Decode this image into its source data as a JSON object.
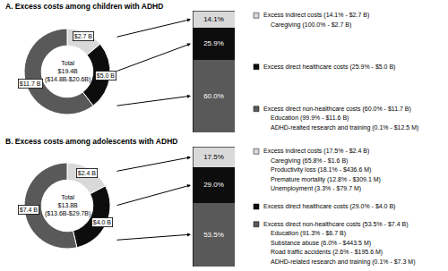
{
  "chart_data": [
    {
      "type": "pie",
      "title": "A. Excess costs among children with ADHD",
      "values": [
        2.7,
        5.0,
        11.7
      ],
      "value_labels": [
        "$2.7 B",
        "$5.0 B",
        "$11.7 B"
      ],
      "colors": [
        "#d9d9d9",
        "#0d0d0d",
        "#595959"
      ],
      "data_labels": true,
      "annotations": [
        "Total",
        "$19.4B",
        "($14.8B-$20.6B)"
      ]
    },
    {
      "type": "bar",
      "stacked": true,
      "tick_labels": false,
      "data_labels": true,
      "ylim": [
        0,
        100
      ],
      "series": [
        {
          "name": "Excess indirect costs (14.1% - $2.7 B)",
          "color": "#d9d9d9",
          "values": [
            14.1
          ],
          "value_labels": [
            "14.1%"
          ],
          "items": [
            "Caregiving (100.0% - $2.7 B)"
          ]
        },
        {
          "name": "Excess direct healthcare costs (25.9% - $5.0 B)",
          "color": "#0d0d0d",
          "values": [
            25.9
          ],
          "value_labels": [
            "25.9%"
          ],
          "items": []
        },
        {
          "name": "Excess direct non-healthcare costs (60.0% - $11.7 B)",
          "color": "#595959",
          "values": [
            60.0
          ],
          "value_labels": [
            "60.0%"
          ],
          "items": [
            "Education (99.9% - $11.6 B)",
            "ADHD-realted research and training (0.1% - $12.5 M)"
          ]
        }
      ]
    },
    {
      "type": "pie",
      "title": "B. Excess costs among adolescents with ADHD",
      "values": [
        2.4,
        4.0,
        7.4
      ],
      "value_labels": [
        "$2.4 B",
        "$4.0 B",
        "$7.4 B"
      ],
      "colors": [
        "#d9d9d9",
        "#0d0d0d",
        "#595959"
      ],
      "data_labels": true,
      "annotations": [
        "Total",
        "$13.8B",
        "($13.6B-$29.7B)"
      ]
    },
    {
      "type": "bar",
      "stacked": true,
      "tick_labels": false,
      "data_labels": true,
      "ylim": [
        0,
        100
      ],
      "series": [
        {
          "name": "Excess indirect costs (17.5% - $2.4 B)",
          "color": "#d9d9d9",
          "values": [
            17.5
          ],
          "value_labels": [
            "17.5%"
          ],
          "items": [
            "Caregiving (65.8% - $1.6 B)",
            "Productivity loss (18.1% - $436.6 M)",
            "Premature mortality (12.8% - $309.1 M)",
            "Unemployment (3.3% - $79.7 M)"
          ]
        },
        {
          "name": "Excess direct healthcare costs (29.0% - $4.0 B)",
          "color": "#0d0d0d",
          "values": [
            29.0
          ],
          "value_labels": [
            "29.0%"
          ],
          "items": []
        },
        {
          "name": "Excess direct non-healthcare costs (53.5% - $7.4 B)",
          "color": "#595959",
          "values": [
            53.5
          ],
          "value_labels": [
            "53.5%"
          ],
          "items": [
            "Education (91.3% - $6.7 B)",
            "Substance abuse (6.0% - $443.5 M)",
            "Road traffic accidents (2.6% - $195.6 M)",
            "ADHD-related research and training (0.1% - $7.3 M)"
          ]
        }
      ]
    }
  ]
}
